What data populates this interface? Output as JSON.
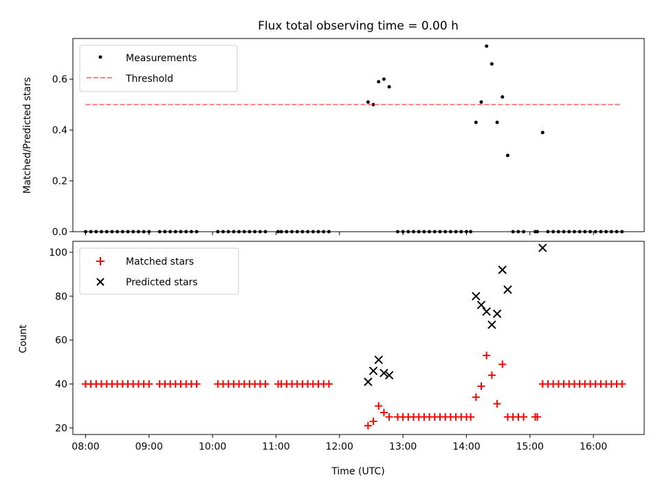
{
  "chart_data": [
    {
      "type": "scatter",
      "title": "Flux total observing time = 0.00 h",
      "ylabel": "Matched/Predicted stars",
      "xlabel": "",
      "xlim": [
        "07:48",
        "16:48"
      ],
      "ylim": [
        0,
        0.76
      ],
      "yticks": [
        0.0,
        0.2,
        0.4,
        0.6
      ],
      "ytick_labels": [
        "0.0",
        "0.2",
        "0.4",
        "0.6"
      ],
      "legend_position": "top-left",
      "grid": false,
      "series": [
        {
          "name": "Measurements",
          "kind": "scatter",
          "color": "#000000",
          "points": [
            [
              "08:00",
              0
            ],
            [
              "08:05",
              0
            ],
            [
              "08:10",
              0
            ],
            [
              "08:15",
              0
            ],
            [
              "08:20",
              0
            ],
            [
              "08:25",
              0
            ],
            [
              "08:30",
              0
            ],
            [
              "08:35",
              0
            ],
            [
              "08:40",
              0
            ],
            [
              "08:45",
              0
            ],
            [
              "08:50",
              0
            ],
            [
              "08:55",
              0
            ],
            [
              "09:00",
              0
            ],
            [
              "09:10",
              0
            ],
            [
              "09:15",
              0
            ],
            [
              "09:20",
              0
            ],
            [
              "09:25",
              0
            ],
            [
              "09:30",
              0
            ],
            [
              "09:35",
              0
            ],
            [
              "09:40",
              0
            ],
            [
              "09:45",
              0
            ],
            [
              "10:05",
              0
            ],
            [
              "10:10",
              0
            ],
            [
              "10:15",
              0
            ],
            [
              "10:20",
              0
            ],
            [
              "10:25",
              0
            ],
            [
              "10:30",
              0
            ],
            [
              "10:35",
              0
            ],
            [
              "10:40",
              0
            ],
            [
              "10:45",
              0
            ],
            [
              "10:50",
              0
            ],
            [
              "11:02",
              0
            ],
            [
              "11:05",
              0
            ],
            [
              "11:10",
              0
            ],
            [
              "11:15",
              0
            ],
            [
              "11:20",
              0
            ],
            [
              "11:25",
              0
            ],
            [
              "11:30",
              0
            ],
            [
              "11:35",
              0
            ],
            [
              "11:40",
              0
            ],
            [
              "11:45",
              0
            ],
            [
              "11:50",
              0
            ],
            [
              "12:27",
              0.51
            ],
            [
              "12:32",
              0.5
            ],
            [
              "12:37",
              0.59
            ],
            [
              "12:42",
              0.6
            ],
            [
              "12:47",
              0.57
            ],
            [
              "12:55",
              0
            ],
            [
              "13:00",
              0
            ],
            [
              "13:05",
              0
            ],
            [
              "13:10",
              0
            ],
            [
              "13:15",
              0
            ],
            [
              "13:20",
              0
            ],
            [
              "13:25",
              0
            ],
            [
              "13:30",
              0
            ],
            [
              "13:35",
              0
            ],
            [
              "13:40",
              0
            ],
            [
              "13:45",
              0
            ],
            [
              "13:50",
              0
            ],
            [
              "13:55",
              0
            ],
            [
              "14:00",
              0
            ],
            [
              "14:04",
              0
            ],
            [
              "14:09",
              0.43
            ],
            [
              "14:14",
              0.51
            ],
            [
              "14:19",
              0.73
            ],
            [
              "14:24",
              0.66
            ],
            [
              "14:29",
              0.43
            ],
            [
              "14:34",
              0.53
            ],
            [
              "14:39",
              0.3
            ],
            [
              "14:44",
              0
            ],
            [
              "14:49",
              0
            ],
            [
              "14:54",
              0
            ],
            [
              "15:05",
              0
            ],
            [
              "15:07",
              0
            ],
            [
              "15:12",
              0.39
            ],
            [
              "15:17",
              0
            ],
            [
              "15:22",
              0
            ],
            [
              "15:27",
              0
            ],
            [
              "15:32",
              0
            ],
            [
              "15:37",
              0
            ],
            [
              "15:42",
              0
            ],
            [
              "15:47",
              0
            ],
            [
              "15:52",
              0
            ],
            [
              "15:57",
              0
            ],
            [
              "16:02",
              0
            ],
            [
              "16:07",
              0
            ],
            [
              "16:12",
              0
            ],
            [
              "16:17",
              0
            ],
            [
              "16:22",
              0
            ],
            [
              "16:27",
              0
            ]
          ]
        },
        {
          "name": "Threshold",
          "kind": "dashed-line",
          "color": "#ff7f7f",
          "points": [
            [
              "08:00",
              0.5
            ],
            [
              "16:25",
              0.5
            ]
          ]
        }
      ]
    },
    {
      "type": "scatter",
      "title": "",
      "ylabel": "Count",
      "xlabel": "Time (UTC)",
      "xlim": [
        "07:48",
        "16:48"
      ],
      "ylim": [
        17,
        105
      ],
      "yticks": [
        20,
        40,
        60,
        80,
        100
      ],
      "ytick_labels": [
        "20",
        "40",
        "60",
        "80",
        "100"
      ],
      "xticks": [
        "08:00",
        "09:00",
        "10:00",
        "11:00",
        "12:00",
        "13:00",
        "14:00",
        "15:00",
        "16:00"
      ],
      "xtick_labels": [
        "08:00",
        "09:00",
        "10:00",
        "11:00",
        "12:00",
        "13:00",
        "14:00",
        "15:00",
        "16:00"
      ],
      "legend_position": "top-left",
      "grid": false,
      "series": [
        {
          "name": "Matched stars",
          "kind": "plus",
          "color": "#ff0000",
          "points": [
            [
              "08:00",
              40
            ],
            [
              "08:05",
              40
            ],
            [
              "08:10",
              40
            ],
            [
              "08:15",
              40
            ],
            [
              "08:20",
              40
            ],
            [
              "08:25",
              40
            ],
            [
              "08:30",
              40
            ],
            [
              "08:35",
              40
            ],
            [
              "08:40",
              40
            ],
            [
              "08:45",
              40
            ],
            [
              "08:50",
              40
            ],
            [
              "08:55",
              40
            ],
            [
              "09:00",
              40
            ],
            [
              "09:10",
              40
            ],
            [
              "09:15",
              40
            ],
            [
              "09:20",
              40
            ],
            [
              "09:25",
              40
            ],
            [
              "09:30",
              40
            ],
            [
              "09:35",
              40
            ],
            [
              "09:40",
              40
            ],
            [
              "09:45",
              40
            ],
            [
              "10:05",
              40
            ],
            [
              "10:10",
              40
            ],
            [
              "10:15",
              40
            ],
            [
              "10:20",
              40
            ],
            [
              "10:25",
              40
            ],
            [
              "10:30",
              40
            ],
            [
              "10:35",
              40
            ],
            [
              "10:40",
              40
            ],
            [
              "10:45",
              40
            ],
            [
              "10:50",
              40
            ],
            [
              "11:02",
              40
            ],
            [
              "11:05",
              40
            ],
            [
              "11:10",
              40
            ],
            [
              "11:15",
              40
            ],
            [
              "11:20",
              40
            ],
            [
              "11:25",
              40
            ],
            [
              "11:30",
              40
            ],
            [
              "11:35",
              40
            ],
            [
              "11:40",
              40
            ],
            [
              "11:45",
              40
            ],
            [
              "11:50",
              40
            ],
            [
              "12:27",
              21
            ],
            [
              "12:32",
              23
            ],
            [
              "12:37",
              30
            ],
            [
              "12:42",
              27
            ],
            [
              "12:47",
              25
            ],
            [
              "12:55",
              25
            ],
            [
              "13:00",
              25
            ],
            [
              "13:05",
              25
            ],
            [
              "13:10",
              25
            ],
            [
              "13:15",
              25
            ],
            [
              "13:20",
              25
            ],
            [
              "13:25",
              25
            ],
            [
              "13:30",
              25
            ],
            [
              "13:35",
              25
            ],
            [
              "13:40",
              25
            ],
            [
              "13:45",
              25
            ],
            [
              "13:50",
              25
            ],
            [
              "13:55",
              25
            ],
            [
              "14:00",
              25
            ],
            [
              "14:04",
              25
            ],
            [
              "14:09",
              34
            ],
            [
              "14:14",
              39
            ],
            [
              "14:19",
              53
            ],
            [
              "14:24",
              44
            ],
            [
              "14:29",
              31
            ],
            [
              "14:34",
              49
            ],
            [
              "14:39",
              25
            ],
            [
              "14:44",
              25
            ],
            [
              "14:49",
              25
            ],
            [
              "14:54",
              25
            ],
            [
              "15:05",
              25
            ],
            [
              "15:07",
              25
            ],
            [
              "15:12",
              40
            ],
            [
              "15:17",
              40
            ],
            [
              "15:22",
              40
            ],
            [
              "15:27",
              40
            ],
            [
              "15:32",
              40
            ],
            [
              "15:37",
              40
            ],
            [
              "15:42",
              40
            ],
            [
              "15:47",
              40
            ],
            [
              "15:52",
              40
            ],
            [
              "15:57",
              40
            ],
            [
              "16:02",
              40
            ],
            [
              "16:07",
              40
            ],
            [
              "16:12",
              40
            ],
            [
              "16:17",
              40
            ],
            [
              "16:22",
              40
            ],
            [
              "16:27",
              40
            ]
          ]
        },
        {
          "name": "Predicted stars",
          "kind": "x",
          "color": "#000000",
          "points": [
            [
              "12:27",
              41
            ],
            [
              "12:32",
              46
            ],
            [
              "12:37",
              51
            ],
            [
              "12:42",
              45
            ],
            [
              "12:47",
              44
            ],
            [
              "14:09",
              80
            ],
            [
              "14:14",
              76
            ],
            [
              "14:19",
              73
            ],
            [
              "14:24",
              67
            ],
            [
              "14:29",
              72
            ],
            [
              "14:34",
              92
            ],
            [
              "14:39",
              83
            ],
            [
              "15:12",
              102
            ]
          ]
        }
      ]
    }
  ]
}
